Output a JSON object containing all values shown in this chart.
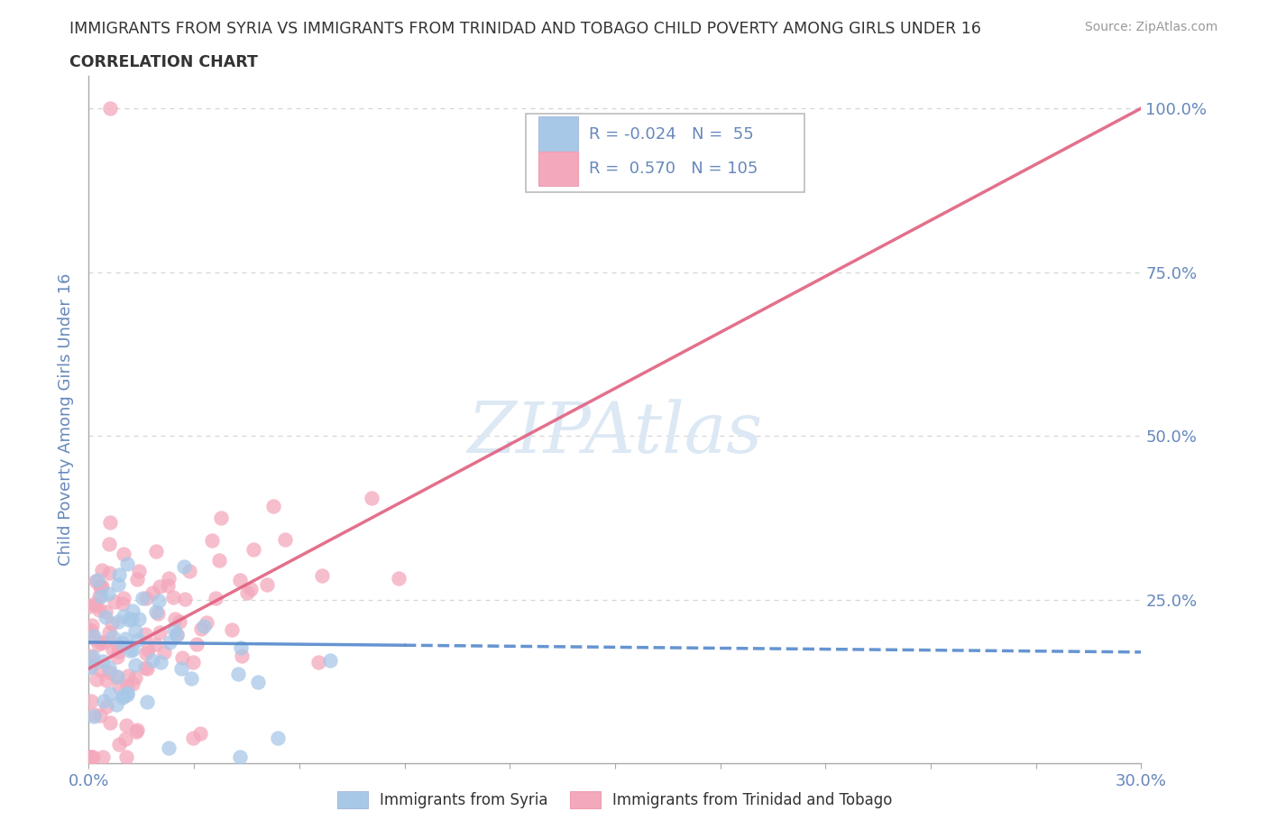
{
  "title_line1": "IMMIGRANTS FROM SYRIA VS IMMIGRANTS FROM TRINIDAD AND TOBAGO CHILD POVERTY AMONG GIRLS UNDER 16",
  "title_line2": "CORRELATION CHART",
  "source_text": "Source: ZipAtlas.com",
  "ylabel": "Child Poverty Among Girls Under 16",
  "xlim": [
    0.0,
    0.3
  ],
  "ylim": [
    0.0,
    1.05
  ],
  "yticks": [
    0.0,
    0.25,
    0.5,
    0.75,
    1.0
  ],
  "xticks": [
    0.0,
    0.03,
    0.06,
    0.09,
    0.12,
    0.15,
    0.18,
    0.21,
    0.24,
    0.27,
    0.3
  ],
  "syria_color": "#a8c8e8",
  "tt_color": "#f4a8bc",
  "syria_line_color": "#5588cc",
  "tt_line_color": "#e06080",
  "watermark_color": "#dce8f4",
  "R_syria": -0.024,
  "N_syria": 55,
  "R_tt": 0.57,
  "N_tt": 105,
  "legend_label_syria": "Immigrants from Syria",
  "legend_label_tt": "Immigrants from Trinidad and Tobago",
  "syria_line_intercept": 0.185,
  "syria_line_slope": -0.05,
  "tt_line_intercept": 0.145,
  "tt_line_slope": 2.85,
  "background_color": "#ffffff",
  "grid_color": "#cccccc",
  "title_color": "#333333",
  "axis_label_color": "#6688bb",
  "tick_label_color": "#6688bb"
}
